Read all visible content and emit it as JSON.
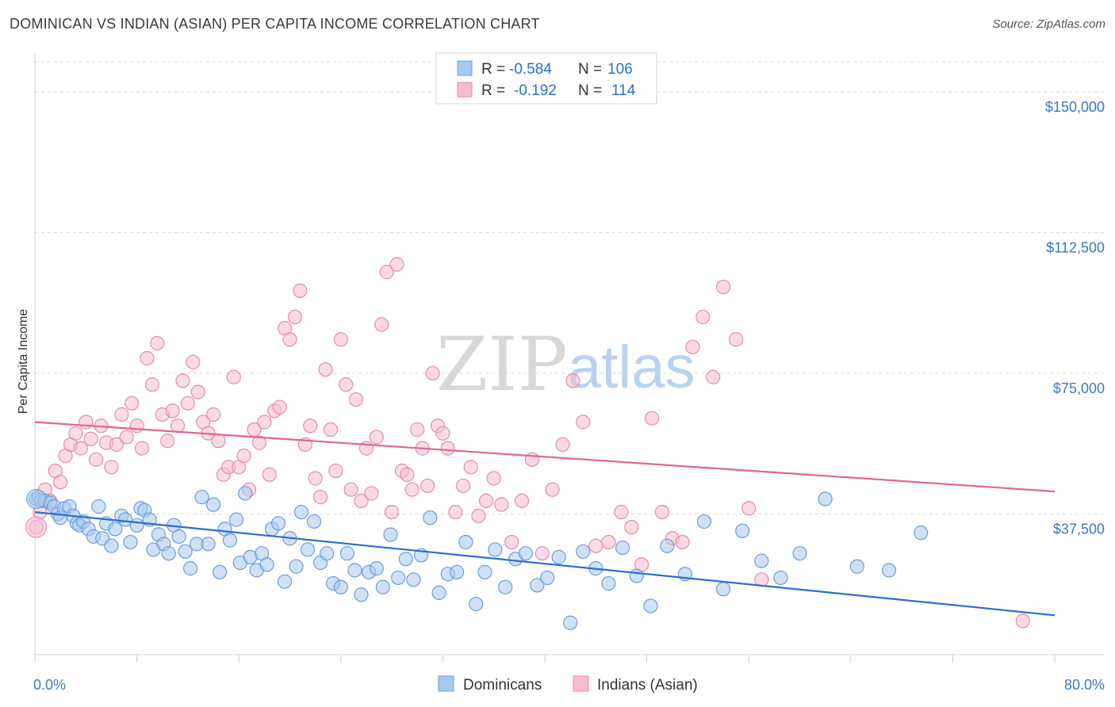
{
  "title": "DOMINICAN VS INDIAN (ASIAN) PER CAPITA INCOME CORRELATION CHART",
  "source": "Source: ZipAtlas.com",
  "watermark": {
    "part1": "ZIP",
    "part2": "atlas"
  },
  "colors": {
    "blue_fill": "#a9c8ef",
    "blue_stroke": "#6b9de0",
    "blue_line": "#2a6fd0",
    "pink_fill": "#f6bdd0",
    "pink_stroke": "#e68aaa",
    "pink_line": "#e0668f",
    "axis_text": "#3a78c8",
    "grid": "#d9d9d9"
  },
  "legend": {
    "row1": {
      "r_label": "R = ",
      "r_value": "-0.584",
      "n_label": "N = ",
      "n_value": "106"
    },
    "row2": {
      "r_label": "R = ",
      "r_value": "-0.192",
      "n_label": "N = ",
      "n_value": "114"
    }
  },
  "bottom_legend": {
    "series1": "Dominicans",
    "series2": "Indians (Asian)"
  },
  "chart_data": {
    "type": "scatter",
    "ylabel": "Per Capita Income",
    "xlabel": "",
    "x_min_label": "0.0%",
    "x_max_label": "80.0%",
    "xlim": [
      0,
      80
    ],
    "ylim": [
      0,
      158000
    ],
    "y_ticks": [
      {
        "value": 37500,
        "label": "$37,500"
      },
      {
        "value": 75000,
        "label": "$75,000"
      },
      {
        "value": 112500,
        "label": "$112,500"
      },
      {
        "value": 150000,
        "label": "$150,000"
      }
    ],
    "grid": true,
    "legend_position": "top-center",
    "series": [
      {
        "name": "Dominicans",
        "color": "#a9c8ef",
        "r": -0.584,
        "n": 106,
        "trend": {
          "x": [
            0,
            80
          ],
          "y": [
            38000,
            10500
          ]
        },
        "points": [
          [
            0.1,
            41500
          ],
          [
            0.3,
            42000
          ],
          [
            0.5,
            41000
          ],
          [
            0.8,
            41000
          ],
          [
            1.2,
            40500
          ],
          [
            1.5,
            39500
          ],
          [
            1.8,
            37500
          ],
          [
            2.0,
            36500
          ],
          [
            2.3,
            39000
          ],
          [
            2.7,
            39500
          ],
          [
            3.0,
            37000
          ],
          [
            3.3,
            35000
          ],
          [
            3.5,
            34500
          ],
          [
            3.8,
            35500
          ],
          [
            4.2,
            33500
          ],
          [
            4.6,
            31500
          ],
          [
            5.0,
            39500
          ],
          [
            5.3,
            31000
          ],
          [
            5.6,
            35000
          ],
          [
            6.0,
            29000
          ],
          [
            6.3,
            33500
          ],
          [
            6.8,
            37000
          ],
          [
            7.1,
            36000
          ],
          [
            7.5,
            30000
          ],
          [
            8.0,
            34500
          ],
          [
            8.3,
            39000
          ],
          [
            8.6,
            38500
          ],
          [
            9.0,
            36000
          ],
          [
            9.3,
            28000
          ],
          [
            9.7,
            32000
          ],
          [
            10.1,
            29500
          ],
          [
            10.5,
            27000
          ],
          [
            10.9,
            34500
          ],
          [
            11.3,
            31500
          ],
          [
            11.8,
            27500
          ],
          [
            12.2,
            23000
          ],
          [
            12.7,
            29500
          ],
          [
            13.1,
            42000
          ],
          [
            13.6,
            29500
          ],
          [
            14.0,
            40000
          ],
          [
            14.5,
            22000
          ],
          [
            14.9,
            33500
          ],
          [
            15.3,
            30500
          ],
          [
            15.8,
            36000
          ],
          [
            16.1,
            24500
          ],
          [
            16.5,
            43000
          ],
          [
            16.9,
            26000
          ],
          [
            17.4,
            22500
          ],
          [
            17.8,
            27000
          ],
          [
            18.2,
            24000
          ],
          [
            18.6,
            33500
          ],
          [
            19.1,
            35000
          ],
          [
            19.6,
            19500
          ],
          [
            20.0,
            31000
          ],
          [
            20.5,
            23500
          ],
          [
            20.9,
            38000
          ],
          [
            21.4,
            28000
          ],
          [
            21.9,
            35500
          ],
          [
            22.4,
            24500
          ],
          [
            22.9,
            27000
          ],
          [
            23.4,
            19000
          ],
          [
            24.0,
            18000
          ],
          [
            24.5,
            27000
          ],
          [
            25.1,
            22500
          ],
          [
            25.6,
            16000
          ],
          [
            26.2,
            22000
          ],
          [
            26.8,
            23000
          ],
          [
            27.3,
            18000
          ],
          [
            27.9,
            32000
          ],
          [
            28.5,
            20500
          ],
          [
            29.1,
            25500
          ],
          [
            29.7,
            20000
          ],
          [
            30.3,
            26500
          ],
          [
            31.0,
            36500
          ],
          [
            31.7,
            16500
          ],
          [
            32.4,
            21500
          ],
          [
            33.1,
            22000
          ],
          [
            33.8,
            30000
          ],
          [
            34.6,
            13500
          ],
          [
            35.3,
            22000
          ],
          [
            36.1,
            28000
          ],
          [
            36.9,
            18000
          ],
          [
            37.7,
            25500
          ],
          [
            38.5,
            27000
          ],
          [
            39.4,
            18500
          ],
          [
            40.2,
            20500
          ],
          [
            41.1,
            26000
          ],
          [
            42.0,
            8500
          ],
          [
            43.0,
            27500
          ],
          [
            44.0,
            23000
          ],
          [
            45.0,
            19000
          ],
          [
            46.1,
            28500
          ],
          [
            47.2,
            21000
          ],
          [
            48.3,
            13000
          ],
          [
            49.6,
            29000
          ],
          [
            51.0,
            21500
          ],
          [
            52.5,
            35500
          ],
          [
            54.0,
            17500
          ],
          [
            55.5,
            33000
          ],
          [
            57.0,
            25000
          ],
          [
            58.5,
            20500
          ],
          [
            60.0,
            27000
          ],
          [
            62.0,
            41500
          ],
          [
            64.5,
            23500
          ],
          [
            67.0,
            22500
          ],
          [
            69.5,
            32500
          ]
        ]
      },
      {
        "name": "Indians (Asian)",
        "color": "#f6bdd0",
        "r": -0.192,
        "n": 114,
        "trend": {
          "x": [
            0,
            80
          ],
          "y": [
            62000,
            43500
          ]
        },
        "points": [
          [
            0.1,
            34000
          ],
          [
            0.4,
            38000
          ],
          [
            0.8,
            44000
          ],
          [
            1.2,
            41000
          ],
          [
            1.6,
            49000
          ],
          [
            2.0,
            46000
          ],
          [
            2.4,
            53000
          ],
          [
            2.8,
            56000
          ],
          [
            3.2,
            59000
          ],
          [
            3.6,
            55000
          ],
          [
            4.0,
            62000
          ],
          [
            4.4,
            57500
          ],
          [
            4.8,
            52000
          ],
          [
            5.2,
            61000
          ],
          [
            5.6,
            56500
          ],
          [
            6.0,
            50000
          ],
          [
            6.4,
            56000
          ],
          [
            6.8,
            64000
          ],
          [
            7.2,
            58000
          ],
          [
            7.6,
            67000
          ],
          [
            8.0,
            61000
          ],
          [
            8.4,
            55000
          ],
          [
            8.8,
            79000
          ],
          [
            9.2,
            72000
          ],
          [
            9.6,
            83000
          ],
          [
            10.0,
            64000
          ],
          [
            10.4,
            57000
          ],
          [
            10.8,
            65000
          ],
          [
            11.2,
            61000
          ],
          [
            11.6,
            73000
          ],
          [
            12.0,
            67000
          ],
          [
            12.4,
            78000
          ],
          [
            12.8,
            70000
          ],
          [
            13.2,
            62000
          ],
          [
            13.6,
            59000
          ],
          [
            14.0,
            64000
          ],
          [
            14.4,
            57000
          ],
          [
            14.8,
            48000
          ],
          [
            15.2,
            50000
          ],
          [
            15.6,
            74000
          ],
          [
            16.0,
            50000
          ],
          [
            16.4,
            53000
          ],
          [
            16.8,
            44000
          ],
          [
            17.2,
            60000
          ],
          [
            17.6,
            56500
          ],
          [
            18.0,
            62000
          ],
          [
            18.4,
            48000
          ],
          [
            18.8,
            65000
          ],
          [
            19.2,
            66000
          ],
          [
            19.6,
            87000
          ],
          [
            20.0,
            84000
          ],
          [
            20.4,
            90000
          ],
          [
            20.8,
            97000
          ],
          [
            21.2,
            56000
          ],
          [
            21.6,
            61000
          ],
          [
            22.0,
            47000
          ],
          [
            22.4,
            42000
          ],
          [
            22.8,
            76000
          ],
          [
            23.2,
            60000
          ],
          [
            23.6,
            49000
          ],
          [
            24.0,
            84000
          ],
          [
            24.4,
            72000
          ],
          [
            24.8,
            44000
          ],
          [
            25.2,
            68000
          ],
          [
            25.6,
            41000
          ],
          [
            26.0,
            55000
          ],
          [
            26.4,
            43000
          ],
          [
            26.8,
            58000
          ],
          [
            27.2,
            88000
          ],
          [
            27.6,
            102000
          ],
          [
            28.0,
            38000
          ],
          [
            28.4,
            104000
          ],
          [
            28.8,
            49000
          ],
          [
            29.2,
            48000
          ],
          [
            29.6,
            44000
          ],
          [
            30.0,
            60000
          ],
          [
            30.4,
            55000
          ],
          [
            30.8,
            45000
          ],
          [
            31.2,
            75000
          ],
          [
            31.6,
            61000
          ],
          [
            32.0,
            59000
          ],
          [
            32.4,
            55000
          ],
          [
            33.0,
            38000
          ],
          [
            33.6,
            45000
          ],
          [
            34.2,
            50000
          ],
          [
            34.8,
            37000
          ],
          [
            35.4,
            41000
          ],
          [
            36.0,
            47000
          ],
          [
            36.6,
            40000
          ],
          [
            37.4,
            30000
          ],
          [
            38.2,
            41000
          ],
          [
            39.0,
            52000
          ],
          [
            39.8,
            27000
          ],
          [
            40.6,
            44000
          ],
          [
            41.4,
            56000
          ],
          [
            42.2,
            73000
          ],
          [
            43.0,
            62000
          ],
          [
            44.0,
            29000
          ],
          [
            45.0,
            30000
          ],
          [
            46.0,
            38000
          ],
          [
            46.8,
            34000
          ],
          [
            47.6,
            24000
          ],
          [
            48.4,
            63000
          ],
          [
            49.2,
            38000
          ],
          [
            50.0,
            31000
          ],
          [
            50.8,
            30000
          ],
          [
            51.6,
            82000
          ],
          [
            52.4,
            90000
          ],
          [
            53.2,
            74000
          ],
          [
            54.0,
            98000
          ],
          [
            55.0,
            84000
          ],
          [
            56.0,
            39000
          ],
          [
            57.0,
            20000
          ],
          [
            77.5,
            9000
          ]
        ]
      }
    ]
  }
}
